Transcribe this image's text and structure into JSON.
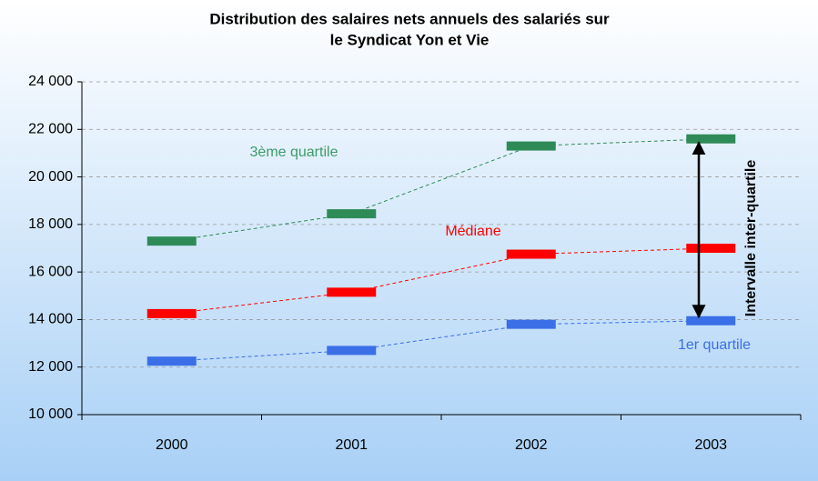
{
  "chart_data": {
    "type": "line",
    "title": [
      "Distribution des salaires nets annuels des salariés sur",
      "le Syndicat Yon et Vie"
    ],
    "categories": [
      "2000",
      "2001",
      "2002",
      "2003"
    ],
    "series": [
      {
        "name": "3ème quartile",
        "color": "#2e8b57",
        "values": [
          17300,
          18450,
          21300,
          21600
        ]
      },
      {
        "name": "Médiane",
        "color": "#ff0000",
        "values": [
          14250,
          15150,
          16750,
          17000
        ]
      },
      {
        "name": "1er quartile",
        "color": "#3a6fe8",
        "values": [
          12250,
          12700,
          13800,
          13950
        ]
      }
    ],
    "annotation": "Intervalle inter-quartile",
    "ylim": [
      10000,
      24000
    ],
    "yticks": [
      {
        "value": 10000,
        "label": "10 000"
      },
      {
        "value": 12000,
        "label": "12 000"
      },
      {
        "value": 14000,
        "label": "14 000"
      },
      {
        "value": 16000,
        "label": "16 000"
      },
      {
        "value": 18000,
        "label": "18 000"
      },
      {
        "value": 20000,
        "label": "20 000"
      },
      {
        "value": 22000,
        "label": "22 000"
      },
      {
        "value": 24000,
        "label": "24 000"
      }
    ],
    "grid": true
  }
}
